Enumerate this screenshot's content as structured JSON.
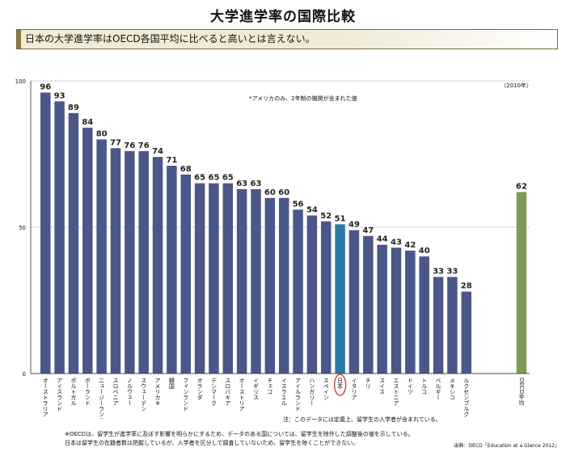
{
  "title": "大学進学率の国際比較",
  "subtitle": "日本の大学進学率はOECD各国平均に比べると高いとは言えない。",
  "year_note": "（2010年）",
  "usa_note": "*アメリカのみ、2年制の機関が含まれた値",
  "data_note": "注：このデータには定義上、留学生の入学者が含まれている。",
  "footnote_1": "※OECDは、留学生が進学率に及ぼす影響を明らかにするため、データのある国については、留学生を除外した調整後の値を示している。",
  "footnote_2": "日本は留学生の在籍者数は把握しているが、入学者を区分して調査していないため、留学生を除くことができない。",
  "source": "出典：OECD「Education at a Glance 2012」",
  "colors": {
    "bar": "#4b5788",
    "japan": "#2a7aa7",
    "avg": "#7f9a55",
    "circle": "#c0392b"
  },
  "chart_data": {
    "type": "bar",
    "categories": [
      "オーストラリア",
      "アイスランド",
      "ポルトガル",
      "ポーランド",
      "ニュージーランド",
      "スロベニア",
      "ノルウェー",
      "スウェーデン",
      "アメリカ※",
      "韓国",
      "フィンランド",
      "オランダ",
      "デンマーク",
      "スロバキア",
      "オーストリア",
      "イギリス",
      "チェコ",
      "イスラエル",
      "アイルランド",
      "ハンガリー",
      "スペイン",
      "日本",
      "イタリア",
      "チリ",
      "スイス",
      "エストニア",
      "ドイツ",
      "トルコ",
      "ベルギー",
      "メキシコ",
      "ルクセンブルグ",
      "OECD平均"
    ],
    "values": [
      96,
      93,
      89,
      84,
      80,
      77,
      76,
      76,
      74,
      71,
      68,
      65,
      65,
      65,
      63,
      63,
      60,
      60,
      56,
      54,
      52,
      51,
      49,
      47,
      44,
      43,
      42,
      40,
      33,
      33,
      28,
      62
    ],
    "highlight": "日本",
    "average_label": "OECD平均",
    "ylim": [
      0,
      100
    ],
    "yticks": [
      0,
      50,
      100
    ],
    "grid": true
  }
}
